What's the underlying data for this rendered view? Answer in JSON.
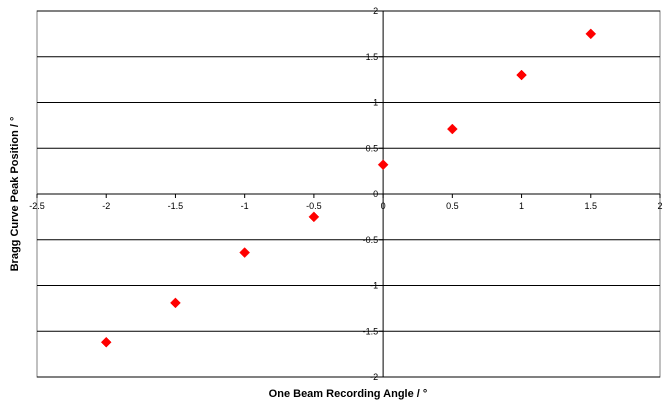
{
  "chart_data": {
    "type": "scatter",
    "title": "",
    "xlabel": "One Beam Recording Angle / °",
    "ylabel": "Bragg Curve Peak Position / °",
    "xlim": [
      -2.5,
      2
    ],
    "ylim": [
      -2,
      2
    ],
    "xticks": [
      -2.5,
      -2,
      -1.5,
      -1,
      -0.5,
      0,
      0.5,
      1,
      1.5,
      2
    ],
    "yticks": [
      -2,
      -1.5,
      -1,
      -0.5,
      0,
      0.5,
      1,
      1.5,
      2
    ],
    "xtick_labels": [
      "-2.5",
      "-2",
      "-1.5",
      "-1",
      "-0.5",
      "0",
      "0.5",
      "1",
      "1.5",
      "2"
    ],
    "ytick_labels": [
      "-2",
      "-1.5",
      "-1",
      "-0.5",
      "0",
      "0.5",
      "1",
      "1.5",
      "2"
    ],
    "grid": "horizontal",
    "legend": "none",
    "marker": "diamond",
    "marker_color": "#ff0000",
    "series": [
      {
        "x": [
          -2,
          -1.5,
          -1,
          -0.5,
          0,
          0.5,
          1,
          1.5
        ],
        "y": [
          -1.62,
          -1.19,
          -0.64,
          -0.25,
          0.32,
          0.71,
          1.3,
          1.75
        ]
      }
    ]
  }
}
